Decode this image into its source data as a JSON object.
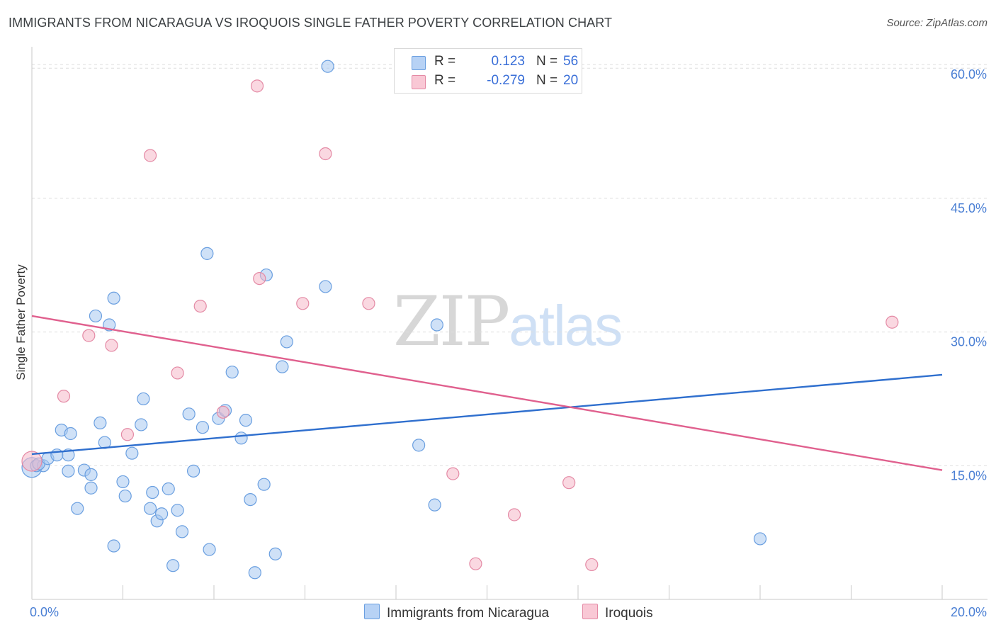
{
  "header": {
    "title": "IMMIGRANTS FROM NICARAGUA VS IROQUOIS SINGLE FATHER POVERTY CORRELATION CHART",
    "source": "Source: ZipAtlas.com"
  },
  "watermark": {
    "zip": "ZIP",
    "atlas": "atlas"
  },
  "legend": {
    "rows": [
      {
        "r_label": "R =",
        "r_value": "0.123",
        "n_label": "N =",
        "n_value": "56"
      },
      {
        "r_label": "R =",
        "r_value": "-0.279",
        "n_label": "N =",
        "n_value": "20"
      }
    ]
  },
  "bottom_legend": {
    "series1": "Immigrants from Nicaragua",
    "series2": "Iroquois"
  },
  "colors": {
    "blue_fill": "#a8c8f0",
    "blue_stroke": "#6a9fe0",
    "blue_line": "#2f6fce",
    "pink_fill": "#f5b8c8",
    "pink_stroke": "#e48aa5",
    "pink_line": "#e0608e",
    "grid": "#dddddd",
    "axis_text": "#4a7fd4"
  },
  "chart_data": {
    "type": "scatter",
    "title": "IMMIGRANTS FROM NICARAGUA VS IROQUOIS SINGLE FATHER POVERTY CORRELATION CHART",
    "xlabel": "",
    "ylabel": "Single Father Poverty",
    "xlim": [
      0,
      20
    ],
    "ylim": [
      0,
      62
    ],
    "x_ticks": [
      0,
      20
    ],
    "x_tick_labels": [
      "0.0%",
      "20.0%"
    ],
    "y_ticks": [
      15,
      30,
      45,
      60
    ],
    "y_tick_labels": [
      "15.0%",
      "30.0%",
      "45.0%",
      "60.0%"
    ],
    "legend_position": "top-center",
    "series": [
      {
        "name": "Immigrants from Nicaragua",
        "R": 0.123,
        "N": 56,
        "trend": {
          "x": [
            0,
            20
          ],
          "y": [
            16.3,
            25.2
          ]
        },
        "points": [
          [
            0.0,
            14.8
          ],
          [
            0.1,
            15.0
          ],
          [
            0.25,
            15.0
          ],
          [
            0.15,
            15.2
          ],
          [
            0.35,
            15.8
          ],
          [
            0.55,
            16.2
          ],
          [
            0.65,
            19.0
          ],
          [
            0.85,
            18.6
          ],
          [
            0.8,
            14.4
          ],
          [
            0.8,
            16.2
          ],
          [
            1.0,
            10.2
          ],
          [
            1.15,
            14.5
          ],
          [
            1.3,
            12.5
          ],
          [
            1.3,
            14.0
          ],
          [
            1.4,
            31.8
          ],
          [
            1.5,
            19.8
          ],
          [
            1.6,
            17.6
          ],
          [
            1.7,
            30.8
          ],
          [
            1.8,
            33.8
          ],
          [
            1.8,
            6.0
          ],
          [
            2.0,
            13.2
          ],
          [
            2.05,
            11.6
          ],
          [
            2.2,
            16.4
          ],
          [
            2.4,
            19.6
          ],
          [
            2.45,
            22.5
          ],
          [
            2.6,
            10.2
          ],
          [
            2.65,
            12.0
          ],
          [
            2.75,
            8.8
          ],
          [
            2.85,
            9.6
          ],
          [
            3.0,
            12.4
          ],
          [
            3.1,
            3.8
          ],
          [
            3.2,
            10.0
          ],
          [
            3.3,
            7.6
          ],
          [
            3.45,
            20.8
          ],
          [
            3.55,
            14.4
          ],
          [
            3.75,
            19.3
          ],
          [
            3.85,
            38.8
          ],
          [
            3.9,
            5.6
          ],
          [
            4.1,
            20.3
          ],
          [
            4.25,
            21.2
          ],
          [
            4.4,
            25.5
          ],
          [
            4.6,
            18.1
          ],
          [
            4.7,
            20.1
          ],
          [
            4.8,
            11.2
          ],
          [
            4.9,
            3.0
          ],
          [
            5.1,
            12.9
          ],
          [
            5.15,
            36.4
          ],
          [
            5.35,
            5.1
          ],
          [
            5.5,
            26.1
          ],
          [
            5.6,
            28.9
          ],
          [
            6.45,
            35.1
          ],
          [
            6.5,
            59.8
          ],
          [
            8.5,
            17.3
          ],
          [
            8.85,
            10.6
          ],
          [
            8.9,
            30.8
          ],
          [
            16.0,
            6.8
          ]
        ]
      },
      {
        "name": "Iroquois",
        "R": -0.279,
        "N": 20,
        "trend": {
          "x": [
            0,
            20
          ],
          "y": [
            31.8,
            14.5
          ]
        },
        "points": [
          [
            0.0,
            15.5
          ],
          [
            0.7,
            22.8
          ],
          [
            1.25,
            29.6
          ],
          [
            1.75,
            28.5
          ],
          [
            2.1,
            18.5
          ],
          [
            2.6,
            49.8
          ],
          [
            3.2,
            25.4
          ],
          [
            3.7,
            32.9
          ],
          [
            4.2,
            21.0
          ],
          [
            4.95,
            57.6
          ],
          [
            5.0,
            36.0
          ],
          [
            5.95,
            33.2
          ],
          [
            6.45,
            50.0
          ],
          [
            7.4,
            33.2
          ],
          [
            9.25,
            14.1
          ],
          [
            9.75,
            4.0
          ],
          [
            10.6,
            9.5
          ],
          [
            11.8,
            13.1
          ],
          [
            12.3,
            3.9
          ],
          [
            18.9,
            31.1
          ]
        ]
      }
    ]
  }
}
